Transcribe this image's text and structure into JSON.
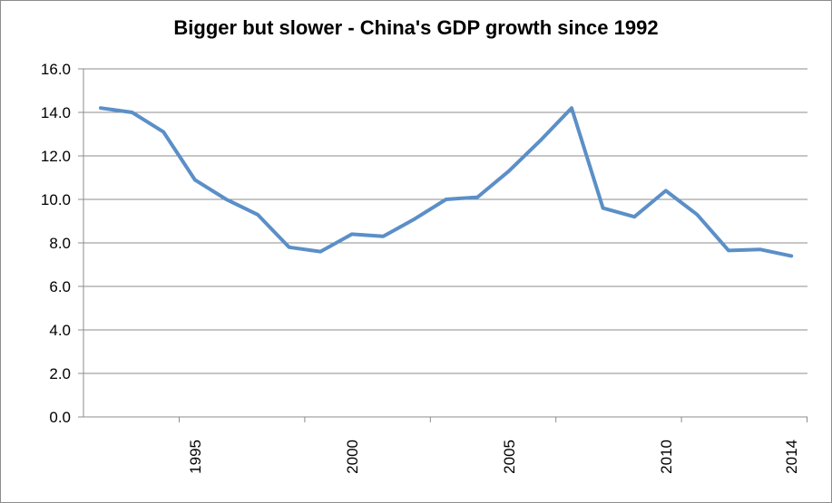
{
  "chart_data": {
    "type": "line",
    "title": "Bigger but slower - China's GDP growth since 1992",
    "xlabel": "",
    "ylabel": "",
    "x": [
      1992,
      1993,
      1994,
      1995,
      1996,
      1997,
      1998,
      1999,
      2000,
      2001,
      2002,
      2003,
      2004,
      2005,
      2006,
      2007,
      2008,
      2009,
      2010,
      2011,
      2012,
      2013,
      2014
    ],
    "series": [
      {
        "values": [
          14.2,
          14.0,
          13.1,
          10.9,
          10.0,
          9.3,
          7.8,
          7.6,
          8.4,
          8.3,
          9.1,
          10.0,
          10.1,
          11.3,
          12.7,
          14.2,
          9.6,
          9.2,
          10.4,
          9.3,
          7.65,
          7.7,
          7.4
        ],
        "color": "#5b8fc7"
      }
    ],
    "ylim": [
      0,
      16
    ],
    "yticks": [
      "0.0",
      "2.0",
      "4.0",
      "6.0",
      "8.0",
      "10.0",
      "12.0",
      "14.0",
      "16.0"
    ],
    "xtick_labels": [
      "1995",
      "2000",
      "2005",
      "2010",
      "2014"
    ],
    "grid": true,
    "legend": "none"
  }
}
